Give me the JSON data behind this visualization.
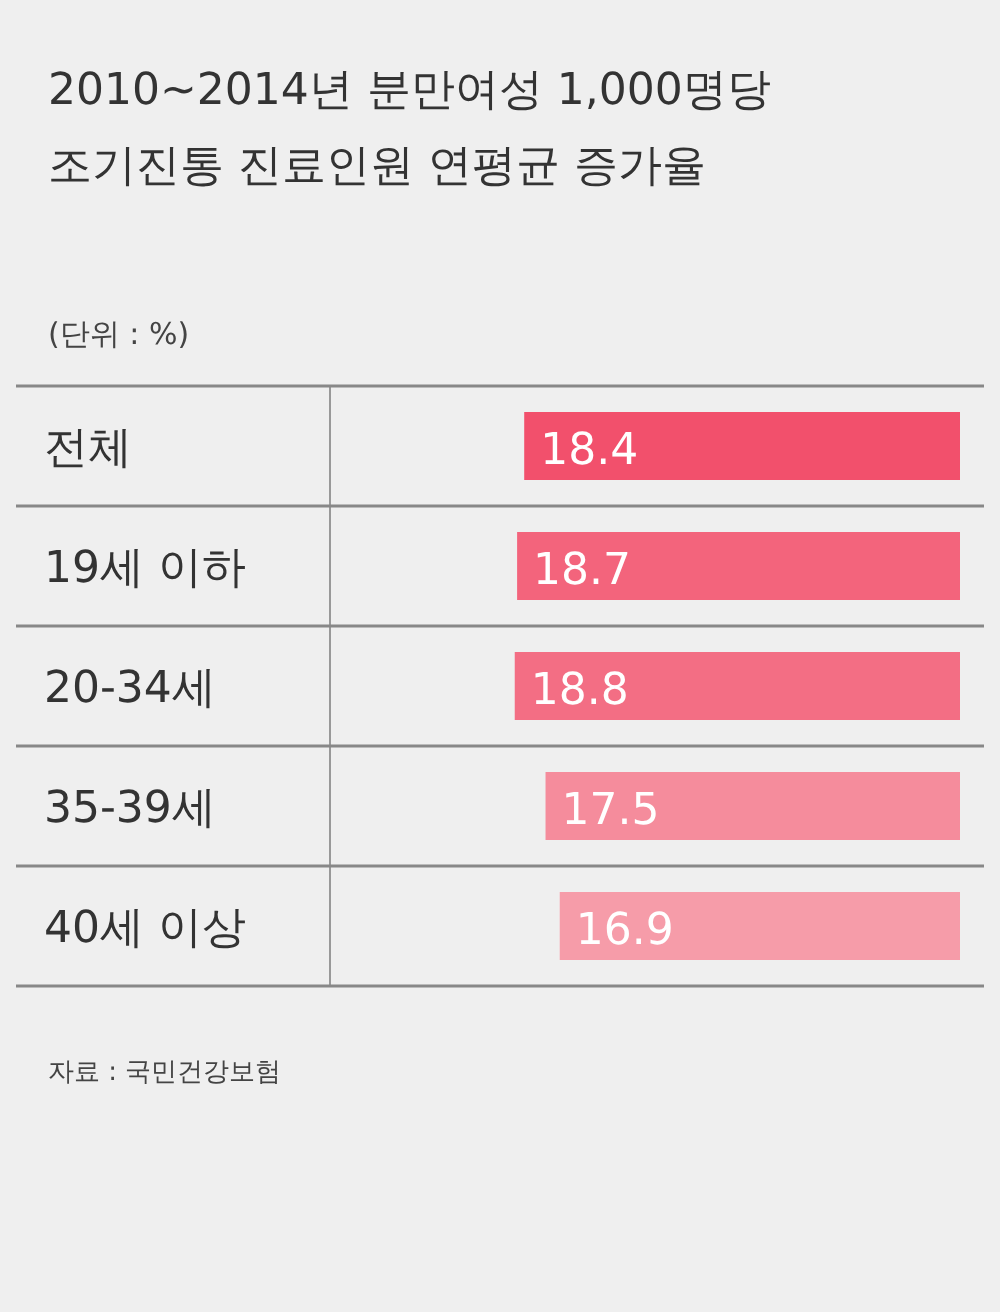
{
  "chart_data": {
    "type": "bar",
    "orientation": "horizontal",
    "title": "2010~2014년 분만여성 1,000명당 조기진통 진료인원 연평균 증가율",
    "annotations": [
      "(단위 : %)",
      "자료 : 국민건강보험"
    ],
    "categories": [
      "전체",
      "19세 이하",
      "20-34세",
      "35-39세",
      "40세 이상"
    ],
    "values": [
      18.4,
      18.7,
      18.8,
      17.5,
      16.9
    ],
    "colors": [
      "#f2506c",
      "#f3647c",
      "#f36e84",
      "#f58c9c",
      "#f69ca9"
    ],
    "xlim": [
      26.6,
      0
    ],
    "data_labels": true
  }
}
